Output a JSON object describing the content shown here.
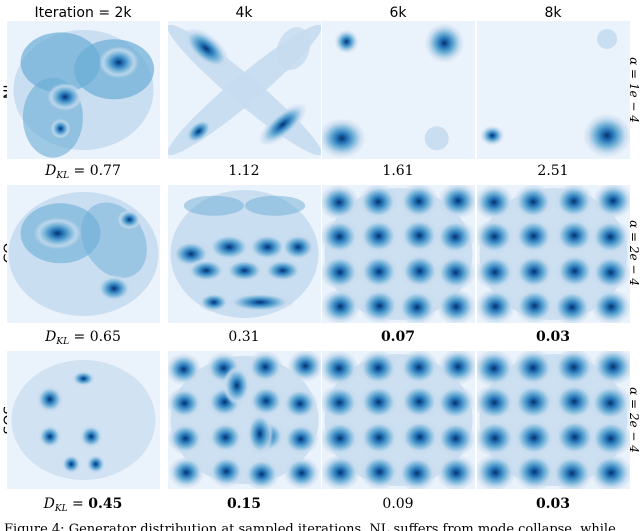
{
  "chart_data": {
    "type": "heatmap",
    "title": "",
    "column_labels": [
      "Iteration = 2k",
      "4k",
      "6k",
      "8k"
    ],
    "rows": [
      {
        "label": "NL",
        "alpha_label": "α = 1e − 4",
        "kl_prefix": "D",
        "kl_subscript": "KL",
        "kl_equals": " = ",
        "kl_values": [
          "0.77",
          "1.12",
          "1.61",
          "2.51"
        ],
        "kl_bold": [
          false,
          false,
          false,
          false
        ]
      },
      {
        "label": "CO",
        "alpha_label": "α = 2e − 4",
        "kl_prefix": "D",
        "kl_subscript": "KL",
        "kl_equals": " = ",
        "kl_values": [
          "0.65",
          "0.31",
          "0.07",
          "0.03"
        ],
        "kl_bold": [
          false,
          false,
          true,
          true
        ]
      },
      {
        "label": "SOS",
        "alpha_label": "α = 2e − 4",
        "kl_prefix": "D",
        "kl_subscript": "KL",
        "kl_equals": " = ",
        "kl_values": [
          "0.45",
          "0.15",
          "0.09",
          "0.03"
        ],
        "kl_bold": [
          true,
          true,
          false,
          true
        ]
      }
    ],
    "caption_fragment": "Figure 4: Generator distribution at sampled iterations. NL suffers from mode collapse, while",
    "colors": {
      "background": "#eaf2fb",
      "light": "#c6dbef",
      "mid": "#6baed6",
      "dark": "#2171b5",
      "darkest": "#08306b"
    }
  }
}
